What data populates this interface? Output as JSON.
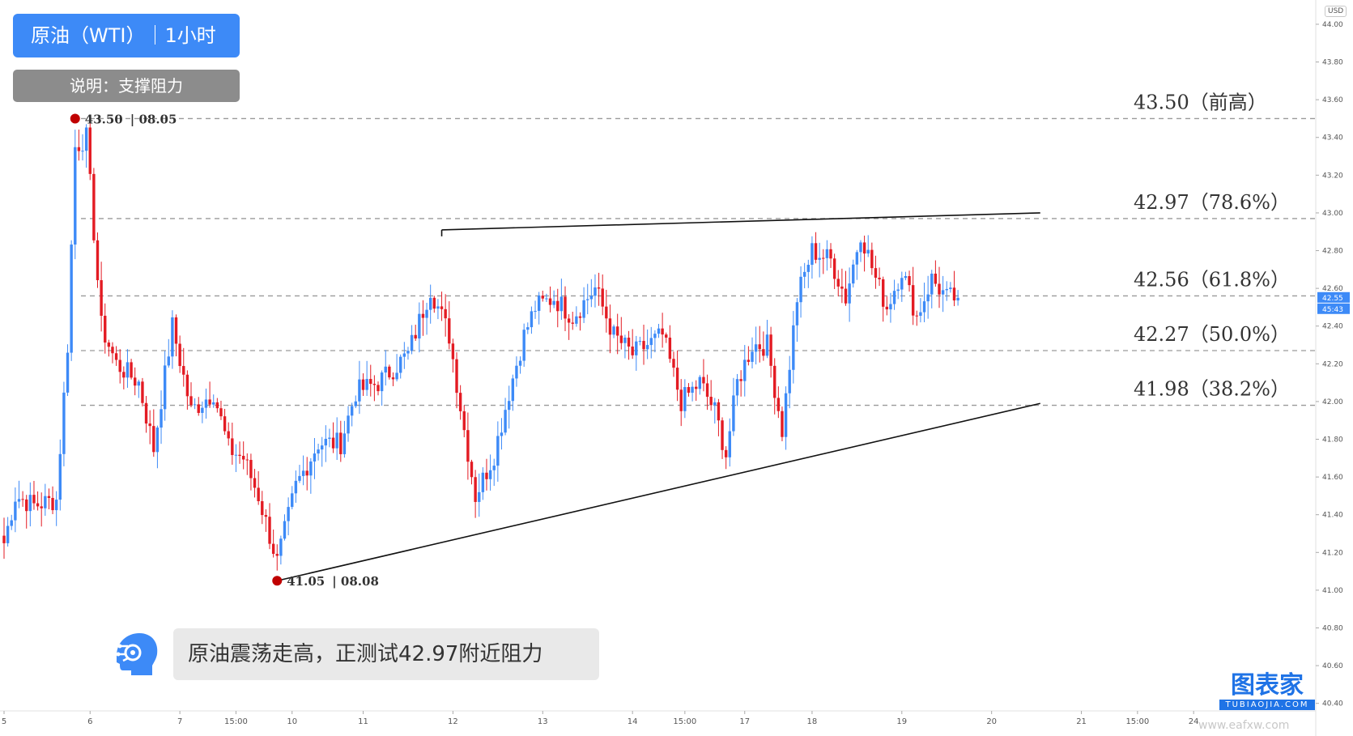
{
  "header": {
    "title": "原油（WTI）｜1小时",
    "note": "说明：支撑阻力",
    "currency": "USD"
  },
  "comment": "原油震荡走高，正测试42.97附近阻力",
  "brand": {
    "name": "图表家",
    "sub": "TUBIAOJIA.COM"
  },
  "site": "www.eafxw.com",
  "colors": {
    "up": "#3d8af7",
    "down": "#e31b23",
    "title_bg": "#3d8af7",
    "note_bg": "#8c8c8c",
    "marker": "#c00000"
  },
  "chart_data": {
    "type": "candlestick",
    "yaxis": {
      "range": [
        40.36,
        44.12
      ],
      "ticks": [
        "44.00",
        "43.80",
        "43.60",
        "43.40",
        "43.20",
        "43.00",
        "42.80",
        "42.60",
        "42.40",
        "42.20",
        "42.00",
        "41.80",
        "41.60",
        "41.40",
        "41.20",
        "41.00",
        "40.80",
        "40.60",
        "40.40"
      ]
    },
    "xaxis": {
      "ticks": [
        {
          "label": "5",
          "i": 0
        },
        {
          "label": "6",
          "i": 23
        },
        {
          "label": "7",
          "i": 47
        },
        {
          "label": "15:00",
          "i": 62
        },
        {
          "label": "10",
          "i": 77
        },
        {
          "label": "11",
          "i": 96
        },
        {
          "label": "12",
          "i": 120
        },
        {
          "label": "13",
          "i": 144
        },
        {
          "label": "14",
          "i": 168
        },
        {
          "label": "15:00",
          "i": 182
        },
        {
          "label": "17",
          "i": 198
        },
        {
          "label": "18",
          "i": 216
        },
        {
          "label": "19",
          "i": 240
        },
        {
          "label": "20",
          "i": 264
        },
        {
          "label": "21",
          "i": 288
        },
        {
          "label": "15:00",
          "i": 303
        },
        {
          "label": "24",
          "i": 318
        }
      ]
    },
    "levels": [
      {
        "value": 43.5,
        "label": "43.50（前高）"
      },
      {
        "value": 42.97,
        "label": "42.97（78.6%）"
      },
      {
        "value": 42.56,
        "label": "42.56（61.8%）"
      },
      {
        "value": 42.27,
        "label": "42.27（50.0%）"
      },
      {
        "value": 41.98,
        "label": "41.98（38.2%）"
      }
    ],
    "resistance_line": [
      {
        "i": 117,
        "price": 42.91
      },
      {
        "i": 277,
        "price": 43.0
      }
    ],
    "support_line": [
      {
        "i": 73,
        "price": 41.05
      },
      {
        "i": 277,
        "price": 41.99
      }
    ],
    "pivot_high": {
      "i": 19,
      "price": 43.5,
      "label": "43.50",
      "date": "08.05"
    },
    "pivot_low": {
      "i": 73,
      "price": 41.05,
      "label": "41.05",
      "date": "08.08"
    },
    "last_price": "42.55",
    "countdown": "45:43",
    "anchors": [
      [
        0,
        41.25
      ],
      [
        3,
        41.5
      ],
      [
        8,
        41.45
      ],
      [
        14,
        41.48
      ],
      [
        17,
        42.3
      ],
      [
        19,
        43.35
      ],
      [
        22,
        43.4
      ],
      [
        26,
        42.4
      ],
      [
        30,
        42.2
      ],
      [
        36,
        42.1
      ],
      [
        40,
        41.75
      ],
      [
        45,
        42.4
      ],
      [
        50,
        41.95
      ],
      [
        56,
        42.05
      ],
      [
        60,
        41.75
      ],
      [
        64,
        41.7
      ],
      [
        68,
        41.5
      ],
      [
        73,
        41.15
      ],
      [
        78,
        41.55
      ],
      [
        84,
        41.78
      ],
      [
        90,
        41.78
      ],
      [
        94,
        42.05
      ],
      [
        100,
        42.1
      ],
      [
        108,
        42.25
      ],
      [
        114,
        42.6
      ],
      [
        119,
        42.35
      ],
      [
        123,
        41.85
      ],
      [
        126,
        41.5
      ],
      [
        131,
        41.72
      ],
      [
        135,
        42.05
      ],
      [
        139,
        42.35
      ],
      [
        142,
        42.5
      ],
      [
        147,
        42.55
      ],
      [
        152,
        42.45
      ],
      [
        158,
        42.6
      ],
      [
        163,
        42.35
      ],
      [
        168,
        42.25
      ],
      [
        172,
        42.3
      ],
      [
        176,
        42.35
      ],
      [
        181,
        42.0
      ],
      [
        186,
        42.1
      ],
      [
        190,
        41.95
      ],
      [
        193,
        41.72
      ],
      [
        196,
        42.1
      ],
      [
        200,
        42.3
      ],
      [
        204,
        42.3
      ],
      [
        208,
        41.85
      ],
      [
        212,
        42.55
      ],
      [
        216,
        42.8
      ],
      [
        221,
        42.75
      ],
      [
        225,
        42.55
      ],
      [
        229,
        42.9
      ],
      [
        233,
        42.65
      ],
      [
        236,
        42.5
      ],
      [
        240,
        42.7
      ],
      [
        244,
        42.45
      ],
      [
        248,
        42.65
      ],
      [
        252,
        42.55
      ],
      [
        255,
        42.55
      ]
    ]
  }
}
